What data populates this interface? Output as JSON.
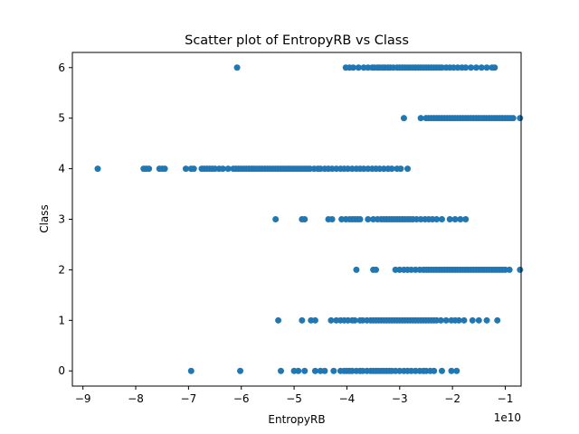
{
  "chart_data": {
    "type": "scatter",
    "title": "Scatter plot of EntropyRB vs Class",
    "xlabel": "EntropyRB",
    "ylabel": "Class",
    "x_offset_label": "1e10",
    "xlim": [
      -9.2,
      -0.7
    ],
    "ylim": [
      -0.3,
      6.3
    ],
    "x_ticks": [
      -9,
      -8,
      -7,
      -6,
      -5,
      -4,
      -3,
      -2,
      -1
    ],
    "x_tick_labels": [
      "−9",
      "−8",
      "−7",
      "−6",
      "−5",
      "−4",
      "−3",
      "−2",
      "−1"
    ],
    "y_ticks": [
      0,
      1,
      2,
      3,
      4,
      5,
      6
    ],
    "y_tick_labels": [
      "0",
      "1",
      "2",
      "3",
      "4",
      "5",
      "6"
    ],
    "grid": false,
    "marker_color": "#1f77b4",
    "series": [
      {
        "points": [
          {
            "class": 0,
            "x": [
              -6.95,
              -6.02,
              -5.25,
              -5.0,
              -4.92,
              -4.8,
              -4.6,
              -4.5,
              -4.42,
              -4.25,
              -4.12,
              -4.05,
              -4.0,
              -3.95,
              -3.9,
              -3.82,
              -3.75,
              -3.7,
              -3.62,
              -3.55,
              -3.5,
              -3.45,
              -3.4,
              -3.35,
              -3.3,
              -3.25,
              -3.2,
              -3.15,
              -3.08,
              -3.0,
              -2.92,
              -2.85,
              -2.78,
              -2.7,
              -2.62,
              -2.55,
              -2.5,
              -2.42,
              -2.35,
              -2.2,
              -2.02,
              -1.92
            ]
          },
          {
            "class": 1,
            "x": [
              -5.3,
              -4.85,
              -4.68,
              -4.6,
              -4.3,
              -4.2,
              -4.12,
              -4.05,
              -3.98,
              -3.9,
              -3.85,
              -3.75,
              -3.7,
              -3.62,
              -3.55,
              -3.5,
              -3.45,
              -3.4,
              -3.35,
              -3.3,
              -3.25,
              -3.2,
              -3.15,
              -3.1,
              -3.05,
              -3.0,
              -2.95,
              -2.9,
              -2.85,
              -2.8,
              -2.75,
              -2.7,
              -2.65,
              -2.6,
              -2.55,
              -2.5,
              -2.45,
              -2.4,
              -2.35,
              -2.3,
              -2.22,
              -2.12,
              -2.02,
              -1.95,
              -1.88,
              -1.78,
              -1.62,
              -1.5,
              -1.35,
              -1.15
            ]
          },
          {
            "class": 2,
            "x": [
              -3.82,
              -3.5,
              -3.45,
              -3.08,
              -3.0,
              -2.92,
              -2.85,
              -2.78,
              -2.7,
              -2.62,
              -2.55,
              -2.5,
              -2.45,
              -2.4,
              -2.35,
              -2.3,
              -2.25,
              -2.2,
              -2.15,
              -2.1,
              -2.05,
              -2.0,
              -1.95,
              -1.9,
              -1.85,
              -1.8,
              -1.75,
              -1.7,
              -1.65,
              -1.6,
              -1.55,
              -1.5,
              -1.45,
              -1.4,
              -1.35,
              -1.3,
              -1.25,
              -1.2,
              -1.15,
              -1.1,
              -1.05,
              -1.0,
              -0.92,
              -0.72
            ]
          },
          {
            "class": 3,
            "x": [
              -5.35,
              -4.85,
              -4.8,
              -4.35,
              -4.28,
              -4.1,
              -4.02,
              -3.95,
              -3.9,
              -3.85,
              -3.8,
              -3.75,
              -3.6,
              -3.5,
              -3.42,
              -3.35,
              -3.3,
              -3.25,
              -3.2,
              -3.15,
              -3.1,
              -3.05,
              -3.0,
              -2.95,
              -2.9,
              -2.85,
              -2.8,
              -2.75,
              -2.68,
              -2.6,
              -2.52,
              -2.45,
              -2.38,
              -2.3,
              -2.2,
              -2.05,
              -1.95,
              -1.85,
              -1.75
            ]
          },
          {
            "class": 4,
            "x": [
              -8.72,
              -7.85,
              -7.8,
              -7.75,
              -7.55,
              -7.5,
              -7.45,
              -7.05,
              -6.95,
              -6.9,
              -6.75,
              -6.7,
              -6.65,
              -6.6,
              -6.55,
              -6.5,
              -6.42,
              -6.35,
              -6.25,
              -6.15,
              -6.1,
              -6.05,
              -6.0,
              -5.95,
              -5.9,
              -5.85,
              -5.8,
              -5.75,
              -5.7,
              -5.65,
              -5.6,
              -5.55,
              -5.5,
              -5.45,
              -5.4,
              -5.35,
              -5.3,
              -5.25,
              -5.2,
              -5.15,
              -5.1,
              -5.05,
              -5.0,
              -4.95,
              -4.9,
              -4.85,
              -4.8,
              -4.75,
              -4.7,
              -4.62,
              -4.55,
              -4.5,
              -4.42,
              -4.35,
              -4.28,
              -4.2,
              -4.12,
              -4.05,
              -3.98,
              -3.9,
              -3.82,
              -3.75,
              -3.68,
              -3.6,
              -3.52,
              -3.45,
              -3.38,
              -3.3,
              -3.22,
              -3.15,
              -3.05,
              -2.98,
              -2.85
            ]
          },
          {
            "class": 5,
            "x": [
              -2.92,
              -2.6,
              -2.5,
              -2.45,
              -2.4,
              -2.35,
              -2.3,
              -2.25,
              -2.2,
              -2.15,
              -2.1,
              -2.05,
              -2.0,
              -1.95,
              -1.9,
              -1.85,
              -1.8,
              -1.75,
              -1.7,
              -1.65,
              -1.6,
              -1.55,
              -1.5,
              -1.45,
              -1.4,
              -1.35,
              -1.3,
              -1.25,
              -1.2,
              -1.15,
              -1.1,
              -1.05,
              -1.0,
              -0.95,
              -0.9,
              -0.85,
              -0.72
            ]
          },
          {
            "class": 6,
            "x": [
              -6.08,
              -4.02,
              -3.95,
              -3.88,
              -3.78,
              -3.68,
              -3.6,
              -3.52,
              -3.48,
              -3.42,
              -3.38,
              -3.32,
              -3.28,
              -3.22,
              -3.18,
              -3.12,
              -3.05,
              -3.0,
              -2.95,
              -2.9,
              -2.85,
              -2.8,
              -2.75,
              -2.7,
              -2.65,
              -2.6,
              -2.55,
              -2.5,
              -2.45,
              -2.4,
              -2.35,
              -2.3,
              -2.25,
              -2.2,
              -2.12,
              -2.05,
              -1.98,
              -1.9,
              -1.82,
              -1.75,
              -1.65,
              -1.55,
              -1.45,
              -1.35,
              -1.25,
              -1.2
            ]
          }
        ]
      }
    ]
  }
}
